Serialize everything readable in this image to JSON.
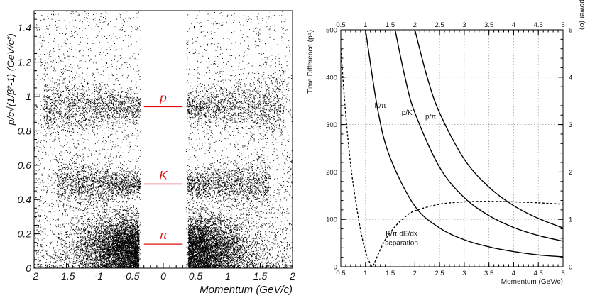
{
  "chart_data": [
    {
      "type": "scatter",
      "xlabel": "Momentum (GeV/c)",
      "ylabel": "p/c√(1/β²-1)  (GeV/c²)",
      "xlim": [
        -2,
        2
      ],
      "ylim": [
        0,
        1.5
      ],
      "xticks": [
        -2,
        -1.5,
        -1,
        -0.5,
        0,
        0.5,
        1,
        1.5,
        2
      ],
      "xtick_labels": [
        "-2",
        "-1.5",
        "-1",
        "-0.5",
        "0",
        "0.5",
        "1",
        "1.5",
        "2"
      ],
      "yticks": [
        0,
        0.2,
        0.4,
        0.6,
        0.8,
        1,
        1.2,
        1.4
      ],
      "ytick_labels": [
        "0",
        "0.2",
        "0.4",
        "0.6",
        "0.8",
        "1",
        "1.2",
        "1.4"
      ],
      "gap": [
        -0.35,
        0.35
      ],
      "bands": [
        {
          "name": "p",
          "y": 0.94
        },
        {
          "name": "K",
          "y": 0.49
        },
        {
          "name": "π",
          "y": 0.14
        }
      ],
      "marker_color": "#dd1111",
      "point_color": "#000000",
      "grid": false
    },
    {
      "type": "line",
      "ylabel": "Time Difference (ps)",
      "ylabel_right": "Separation power (σ)",
      "xlabel": "Momentum (GeV/c)",
      "xlim": [
        0.5,
        5
      ],
      "ylim": [
        0,
        500
      ],
      "ylim_right": [
        0,
        5
      ],
      "xticks": [
        0.5,
        1,
        1.5,
        2,
        2.5,
        3,
        3.5,
        4,
        4.5,
        5
      ],
      "xtick_labels": [
        "0.5",
        "1",
        "1.5",
        "2",
        "2.5",
        "3",
        "3.5",
        "4",
        "4.5",
        "5"
      ],
      "yticks": [
        0,
        100,
        200,
        300,
        400,
        500
      ],
      "ytick_labels": [
        "0",
        "100",
        "200",
        "300",
        "400",
        "500"
      ],
      "yticks_right": [
        0,
        1,
        2,
        3,
        4,
        5
      ],
      "ytick_labels_right": [
        "0",
        "1",
        "2",
        "3",
        "4",
        "5"
      ],
      "grid": true,
      "series": [
        {
          "name": "K/π",
          "style": "solid",
          "x": [
            1.0,
            1.25,
            1.5,
            2.0,
            2.5,
            3.0,
            3.5,
            4.0,
            4.5,
            5.0
          ],
          "y": [
            500,
            330,
            230,
            128,
            82,
            57,
            42,
            32,
            25,
            21
          ]
        },
        {
          "name": "p/K",
          "style": "solid",
          "x": [
            1.6,
            1.8,
            2.0,
            2.5,
            3.0,
            3.5,
            4.0,
            4.5,
            5.0
          ],
          "y": [
            500,
            400,
            325,
            210,
            146,
            108,
            83,
            66,
            54
          ]
        },
        {
          "name": "p/π",
          "style": "solid",
          "x": [
            2.0,
            2.25,
            2.5,
            3.0,
            3.5,
            4.0,
            4.5,
            5.0
          ],
          "y": [
            500,
            400,
            325,
            227,
            168,
            129,
            102,
            82
          ]
        },
        {
          "name": "K/π dE/dx\nseparation",
          "style": "dashed",
          "x": [
            0.5,
            0.6,
            0.7,
            0.8,
            0.9,
            1.0,
            1.1,
            1.15,
            1.25,
            1.4,
            1.6,
            1.8,
            2.0,
            2.5,
            3.0,
            3.5,
            4.0,
            4.5,
            5.0
          ],
          "y": [
            460,
            320,
            215,
            140,
            78,
            32,
            6,
            2,
            25,
            57,
            85,
            105,
            118,
            132,
            137,
            138,
            137,
            135,
            132
          ]
        }
      ]
    }
  ]
}
